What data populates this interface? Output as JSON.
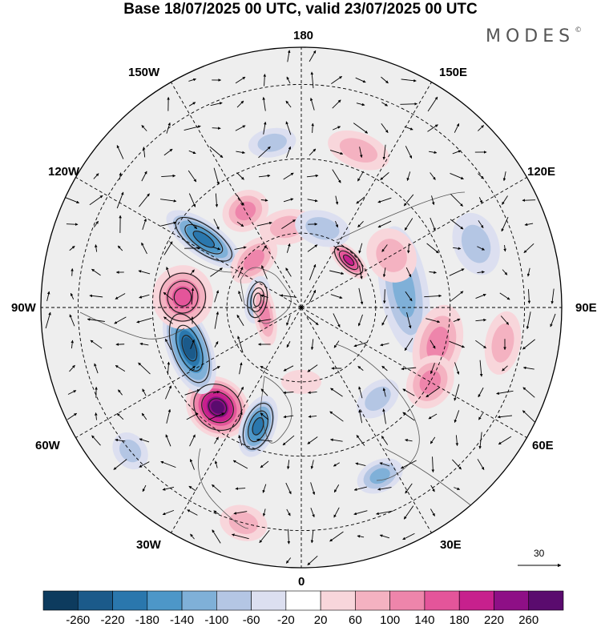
{
  "title": "Base 18/07/2025 00 UTC, valid 23/07/2025 00 UTC",
  "brand": {
    "name": "MODES",
    "mark": "©"
  },
  "longitude_labels": {
    "top": "180",
    "bottom": "0",
    "left": "90W",
    "right": "90E",
    "upper_left_1": "150W",
    "upper_left_2": "120W",
    "upper_right_1": "150E",
    "upper_right_2": "120E",
    "lower_left_1": "60W",
    "lower_left_2": "30W",
    "lower_right_1": "60E",
    "lower_right_2": "30E"
  },
  "vector_scale": {
    "label": "30"
  },
  "colorbar": {
    "ticks": [
      "-260",
      "-220",
      "-180",
      "-140",
      "-100",
      "-60",
      "-20",
      "20",
      "60",
      "100",
      "140",
      "180",
      "220",
      "260"
    ],
    "colors": [
      "#0d3b5e",
      "#1b5a8a",
      "#2a77ad",
      "#4d97c8",
      "#7fb0d8",
      "#b4c6e4",
      "#dcdff0",
      "#ffffff",
      "#f8d6db",
      "#f4b2c1",
      "#ee85ab",
      "#e4559a",
      "#c7208d",
      "#8e0f86",
      "#5a0b6e"
    ]
  },
  "anomalies": [
    {
      "lon": -40,
      "lat": 55,
      "rx": 42,
      "ry": 36,
      "level": 260
    },
    {
      "lon": -20,
      "lat": 56,
      "rx": 22,
      "ry": 40,
      "level": -200
    },
    {
      "lon": -70,
      "lat": 58,
      "rx": 60,
      "ry": 28,
      "level": -220
    },
    {
      "lon": -95,
      "lat": 58,
      "rx": 40,
      "ry": 38,
      "level": 140
    },
    {
      "lon": -125,
      "lat": 58,
      "rx": 22,
      "ry": 55,
      "level": -180
    },
    {
      "lon": -150,
      "lat": 60,
      "rx": 30,
      "ry": 25,
      "level": 100
    },
    {
      "lon": -170,
      "lat": 68,
      "rx": 35,
      "ry": 22,
      "level": 80
    },
    {
      "lon": -135,
      "lat": 72,
      "rx": 35,
      "ry": 22,
      "level": 100
    },
    {
      "lon": -100,
      "lat": 78,
      "rx": 30,
      "ry": 16,
      "level": -140
    },
    {
      "lon": -80,
      "lat": 80,
      "rx": 40,
      "ry": 14,
      "level": 100
    },
    {
      "lon": 100,
      "lat": 62,
      "rx": 80,
      "ry": 30,
      "level": -100
    },
    {
      "lon": 120,
      "lat": 62,
      "rx": 35,
      "ry": 30,
      "level": 60
    },
    {
      "lon": 135,
      "lat": 72,
      "rx": 30,
      "ry": 14,
      "level": 180
    },
    {
      "lon": 165,
      "lat": 68,
      "rx": 35,
      "ry": 22,
      "level": -80
    },
    {
      "lon": 75,
      "lat": 52,
      "rx": 50,
      "ry": 30,
      "level": 100
    },
    {
      "lon": 60,
      "lat": 50,
      "rx": 35,
      "ry": 28,
      "level": 100
    },
    {
      "lon": 40,
      "lat": 58,
      "rx": 30,
      "ry": 20,
      "level": -60
    },
    {
      "lon": 25,
      "lat": 40,
      "rx": 30,
      "ry": 20,
      "level": -100
    },
    {
      "lon": -15,
      "lat": 30,
      "rx": 30,
      "ry": 22,
      "level": 80
    },
    {
      "lon": -50,
      "lat": 30,
      "rx": 25,
      "ry": 20,
      "level": -80
    },
    {
      "lon": 160,
      "lat": 45,
      "rx": 40,
      "ry": 22,
      "level": 60
    },
    {
      "lon": 110,
      "lat": 40,
      "rx": 40,
      "ry": 28,
      "level": -60
    },
    {
      "lon": 80,
      "lat": 35,
      "rx": 40,
      "ry": 22,
      "level": 60
    },
    {
      "lon": -170,
      "lat": 45,
      "rx": 30,
      "ry": 18,
      "level": -60
    },
    {
      "lon": 0,
      "lat": 70,
      "rx": 25,
      "ry": 15,
      "level": 40
    }
  ]
}
